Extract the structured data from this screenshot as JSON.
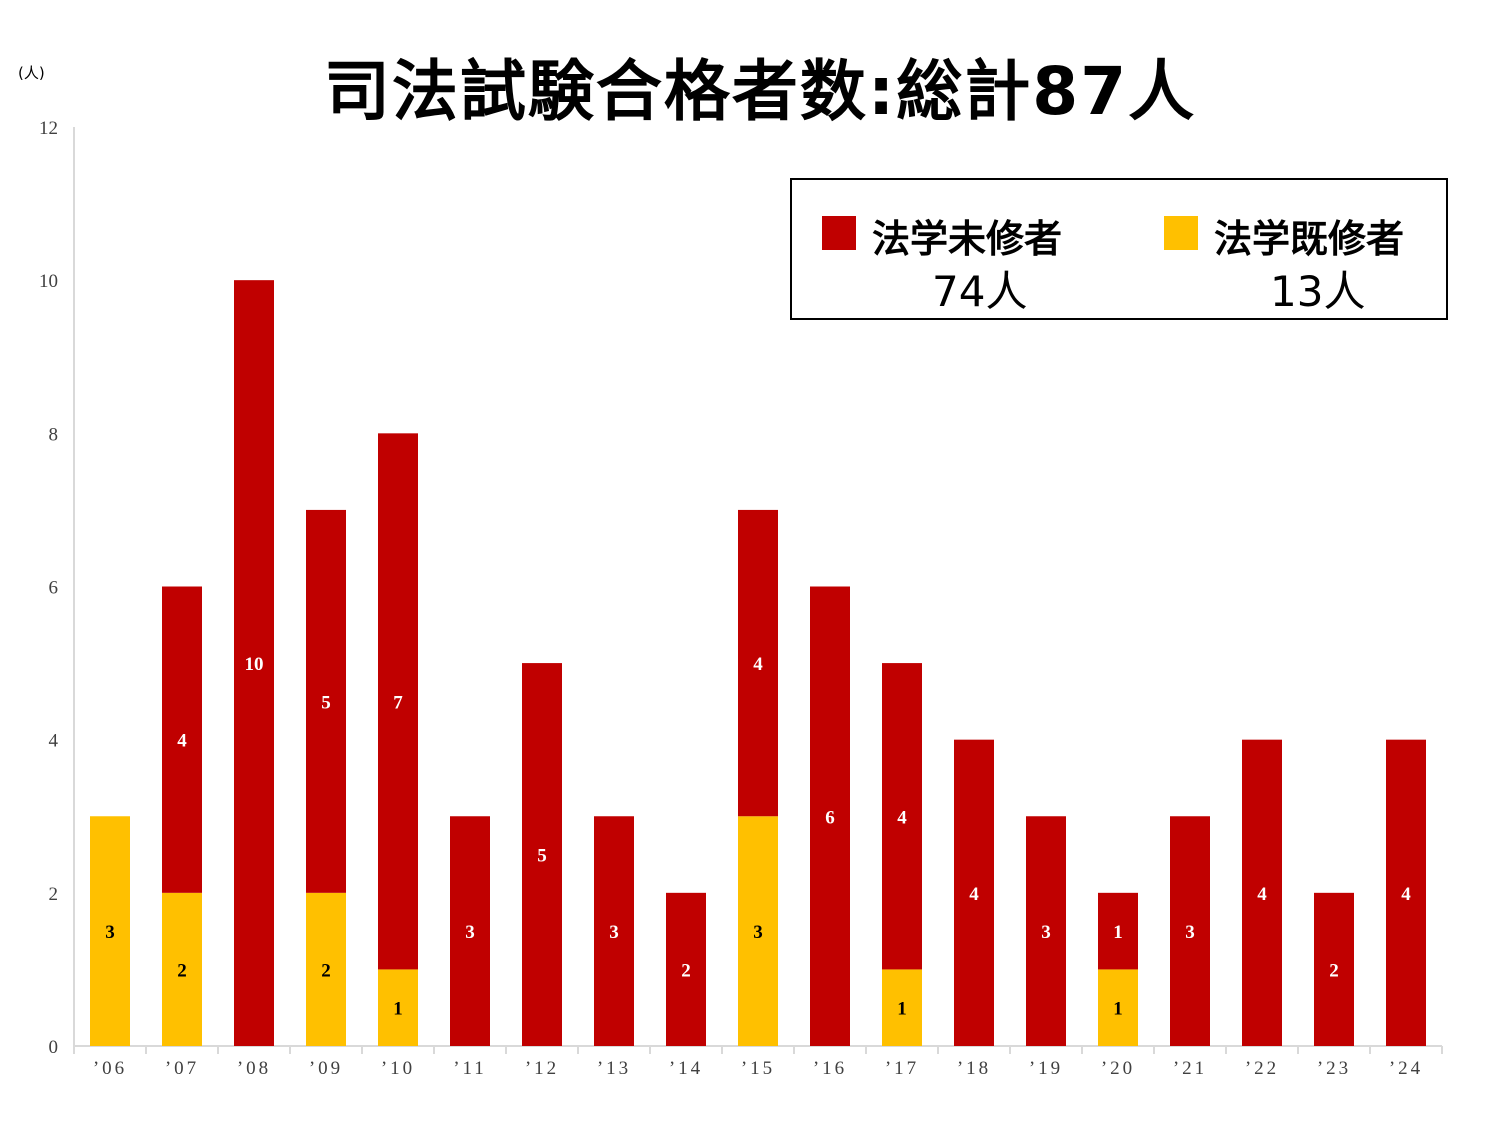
{
  "chart_data": {
    "type": "bar",
    "stacked": true,
    "title": "司法試験合格者数:総計87人",
    "ylabel": "(人)",
    "xlabel": "",
    "ylim": [
      0,
      12
    ],
    "yticks": [
      0,
      2,
      4,
      6,
      8,
      10,
      12
    ],
    "grid": false,
    "categories": [
      "’06",
      "’07",
      "’08",
      "’09",
      "’10",
      "’11",
      "’12",
      "’13",
      "’14",
      "’15",
      "’16",
      "’17",
      "’18",
      "’19",
      "’20",
      "’21",
      "’22",
      "’23",
      "’24"
    ],
    "series": [
      {
        "name": "法学既修者",
        "color": "#FFC000",
        "label_color": "#000000",
        "values": [
          3,
          2,
          0,
          2,
          1,
          0,
          0,
          0,
          0,
          3,
          0,
          1,
          0,
          0,
          1,
          0,
          0,
          0,
          0
        ]
      },
      {
        "name": "法学未修者",
        "color": "#C00000",
        "label_color": "#FFFFFF",
        "values": [
          0,
          4,
          10,
          5,
          7,
          3,
          5,
          3,
          2,
          4,
          6,
          4,
          4,
          3,
          1,
          3,
          4,
          2,
          4
        ]
      }
    ],
    "legend": {
      "placement": "top-right",
      "entries": [
        {
          "name": "法学未修者",
          "count": "74人",
          "color": "#C00000"
        },
        {
          "name": "法学既修者",
          "count": "13人",
          "color": "#FFC000"
        }
      ]
    }
  }
}
